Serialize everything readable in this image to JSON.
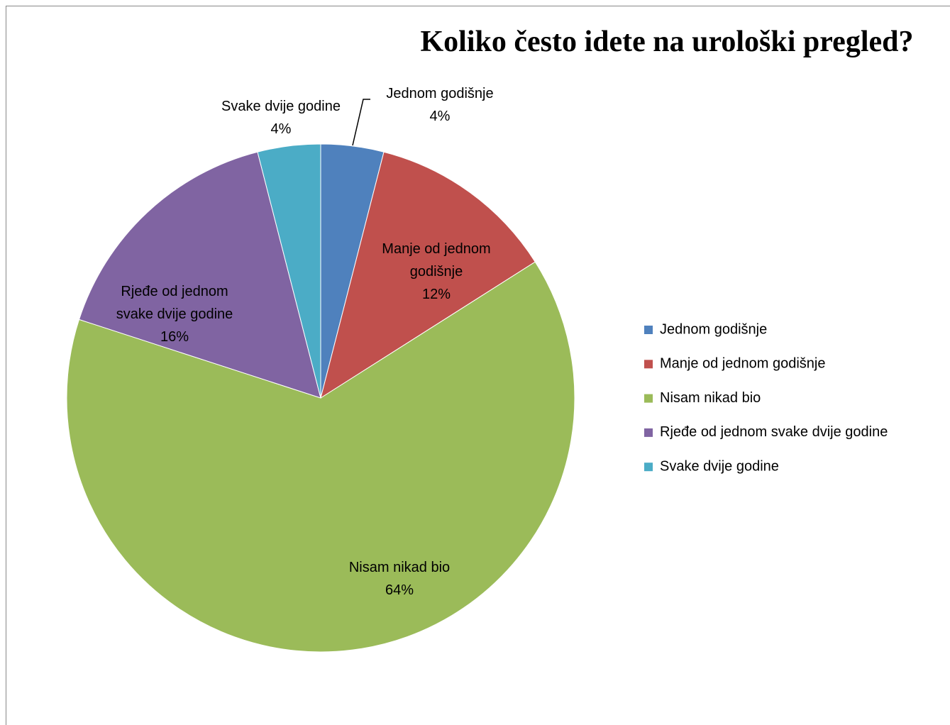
{
  "chart_data": {
    "type": "pie",
    "title": "Koliko često idete na urološki pregled?",
    "categories": [
      "Jednom godišnje",
      "Manje od jednom godišnje",
      "Nisam nikad bio",
      "Rjeđe od jednom svake dvije godine",
      "Svake dvije godine"
    ],
    "values": [
      4,
      12,
      64,
      16,
      4
    ],
    "value_labels": [
      "4%",
      "12%",
      "64%",
      "16%",
      "4%"
    ],
    "colors": [
      "#4f81bd",
      "#c0504d",
      "#9bbb59",
      "#8064a2",
      "#4bacc6"
    ],
    "legend": "right"
  }
}
